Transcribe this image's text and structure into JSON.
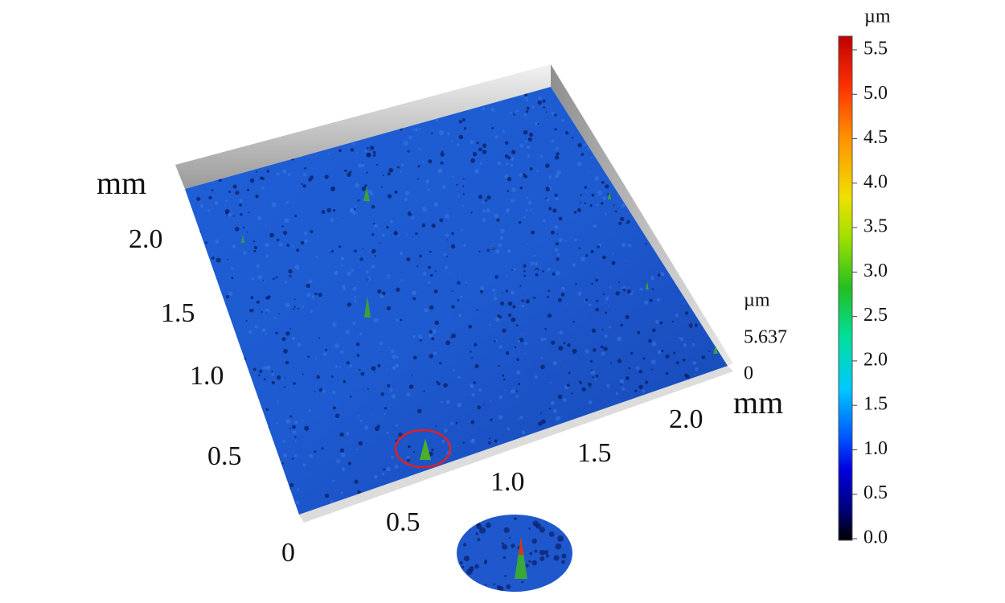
{
  "surface_axes": {
    "y_unit": "mm",
    "y_ticks": [
      "2.0",
      "1.5",
      "1.0",
      "0.5"
    ],
    "origin": "0",
    "x_ticks": [
      "0.5",
      "1.0",
      "1.5",
      "2.0"
    ],
    "x_unit": "mm",
    "z_unit": "µm",
    "z_max": "5.637",
    "z_min": "0"
  },
  "colorbar": {
    "unit": "µm",
    "ticks": [
      "5.5",
      "5.0",
      "4.5",
      "4.0",
      "3.5",
      "3.0",
      "2.5",
      "2.0",
      "1.5",
      "1.0",
      "0.5",
      "0.0"
    ]
  }
}
